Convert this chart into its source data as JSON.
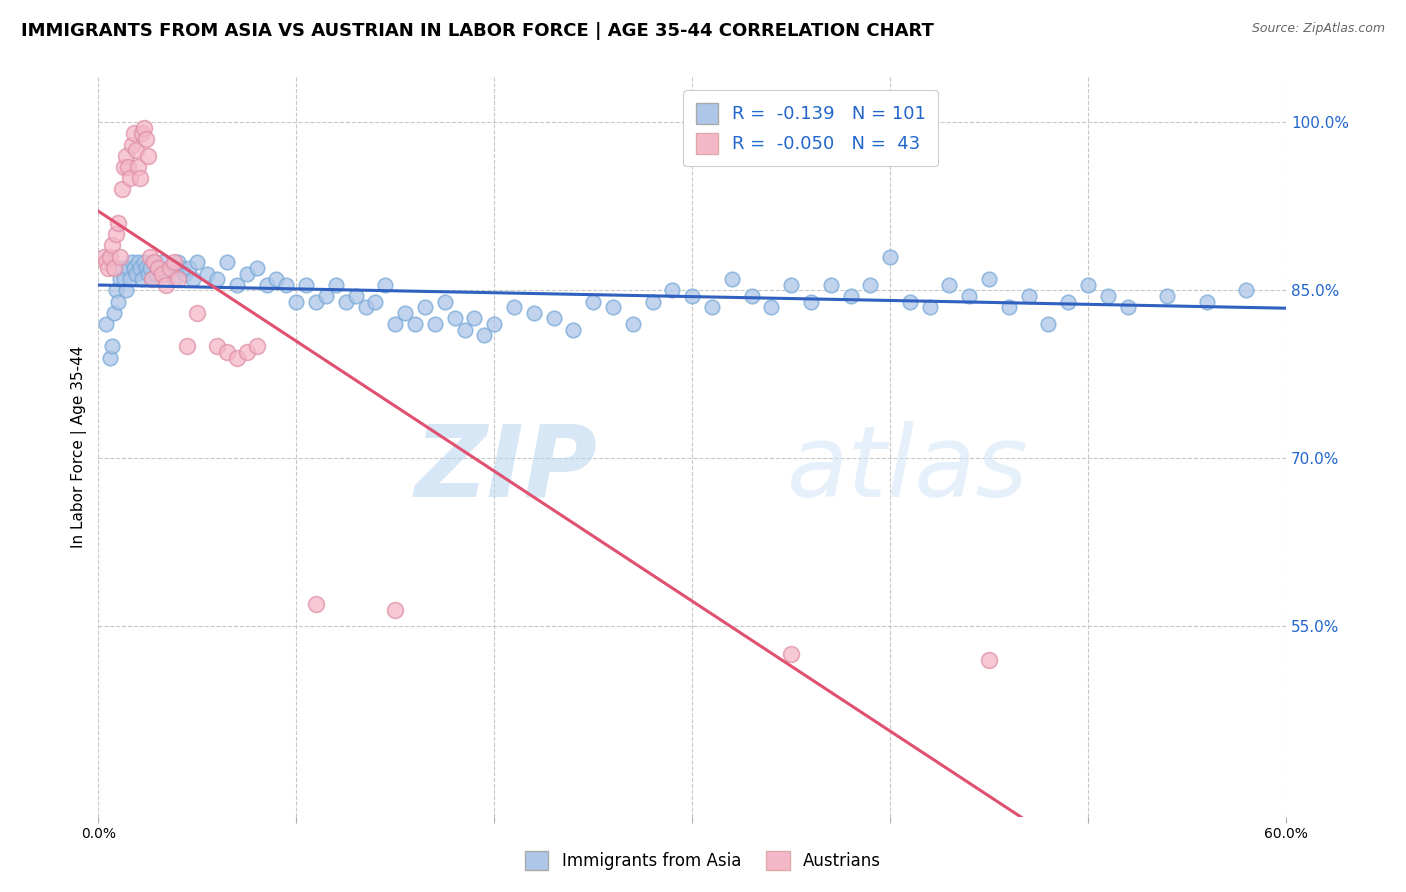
{
  "title": "IMMIGRANTS FROM ASIA VS AUSTRIAN IN LABOR FORCE | AGE 35-44 CORRELATION CHART",
  "source": "Source: ZipAtlas.com",
  "ylabel": "In Labor Force | Age 35-44",
  "xmin": 0.0,
  "xmax": 0.6,
  "ymin": 0.38,
  "ymax": 1.04,
  "right_yticks": [
    1.0,
    0.85,
    0.7,
    0.55
  ],
  "right_yticklabels": [
    "100.0%",
    "85.0%",
    "70.0%",
    "55.0%"
  ],
  "xticks": [
    0.0,
    0.1,
    0.2,
    0.3,
    0.4,
    0.5,
    0.6
  ],
  "xticklabels": [
    "0.0%",
    "",
    "",
    "",
    "",
    "",
    "60.0%"
  ],
  "blue_R": -0.139,
  "blue_N": 101,
  "pink_R": -0.05,
  "pink_N": 43,
  "blue_color": "#aec6e8",
  "pink_color": "#f4b8c8",
  "blue_line_color": "#3060c0",
  "pink_line_color": "#e05070",
  "blue_scatter": [
    [
      0.004,
      0.82
    ],
    [
      0.006,
      0.79
    ],
    [
      0.007,
      0.8
    ],
    [
      0.008,
      0.83
    ],
    [
      0.009,
      0.85
    ],
    [
      0.01,
      0.84
    ],
    [
      0.011,
      0.86
    ],
    [
      0.012,
      0.87
    ],
    [
      0.013,
      0.86
    ],
    [
      0.014,
      0.85
    ],
    [
      0.015,
      0.87
    ],
    [
      0.016,
      0.86
    ],
    [
      0.017,
      0.875
    ],
    [
      0.018,
      0.87
    ],
    [
      0.019,
      0.865
    ],
    [
      0.02,
      0.875
    ],
    [
      0.021,
      0.87
    ],
    [
      0.022,
      0.86
    ],
    [
      0.023,
      0.875
    ],
    [
      0.024,
      0.87
    ],
    [
      0.025,
      0.865
    ],
    [
      0.026,
      0.87
    ],
    [
      0.027,
      0.86
    ],
    [
      0.028,
      0.875
    ],
    [
      0.029,
      0.865
    ],
    [
      0.03,
      0.87
    ],
    [
      0.032,
      0.875
    ],
    [
      0.034,
      0.865
    ],
    [
      0.036,
      0.87
    ],
    [
      0.038,
      0.86
    ],
    [
      0.04,
      0.875
    ],
    [
      0.042,
      0.87
    ],
    [
      0.044,
      0.865
    ],
    [
      0.046,
      0.87
    ],
    [
      0.048,
      0.86
    ],
    [
      0.05,
      0.875
    ],
    [
      0.055,
      0.865
    ],
    [
      0.06,
      0.86
    ],
    [
      0.065,
      0.875
    ],
    [
      0.07,
      0.855
    ],
    [
      0.075,
      0.865
    ],
    [
      0.08,
      0.87
    ],
    [
      0.085,
      0.855
    ],
    [
      0.09,
      0.86
    ],
    [
      0.095,
      0.855
    ],
    [
      0.1,
      0.84
    ],
    [
      0.105,
      0.855
    ],
    [
      0.11,
      0.84
    ],
    [
      0.115,
      0.845
    ],
    [
      0.12,
      0.855
    ],
    [
      0.125,
      0.84
    ],
    [
      0.13,
      0.845
    ],
    [
      0.135,
      0.835
    ],
    [
      0.14,
      0.84
    ],
    [
      0.145,
      0.855
    ],
    [
      0.15,
      0.82
    ],
    [
      0.155,
      0.83
    ],
    [
      0.16,
      0.82
    ],
    [
      0.165,
      0.835
    ],
    [
      0.17,
      0.82
    ],
    [
      0.175,
      0.84
    ],
    [
      0.18,
      0.825
    ],
    [
      0.185,
      0.815
    ],
    [
      0.19,
      0.825
    ],
    [
      0.195,
      0.81
    ],
    [
      0.2,
      0.82
    ],
    [
      0.21,
      0.835
    ],
    [
      0.22,
      0.83
    ],
    [
      0.23,
      0.825
    ],
    [
      0.24,
      0.815
    ],
    [
      0.25,
      0.84
    ],
    [
      0.26,
      0.835
    ],
    [
      0.27,
      0.82
    ],
    [
      0.28,
      0.84
    ],
    [
      0.29,
      0.85
    ],
    [
      0.3,
      0.845
    ],
    [
      0.31,
      0.835
    ],
    [
      0.32,
      0.86
    ],
    [
      0.33,
      0.845
    ],
    [
      0.34,
      0.835
    ],
    [
      0.35,
      0.855
    ],
    [
      0.36,
      0.84
    ],
    [
      0.37,
      0.855
    ],
    [
      0.38,
      0.845
    ],
    [
      0.39,
      0.855
    ],
    [
      0.4,
      0.88
    ],
    [
      0.41,
      0.84
    ],
    [
      0.42,
      0.835
    ],
    [
      0.43,
      0.855
    ],
    [
      0.44,
      0.845
    ],
    [
      0.45,
      0.86
    ],
    [
      0.46,
      0.835
    ],
    [
      0.47,
      0.845
    ],
    [
      0.48,
      0.82
    ],
    [
      0.49,
      0.84
    ],
    [
      0.5,
      0.855
    ],
    [
      0.51,
      0.845
    ],
    [
      0.52,
      0.835
    ],
    [
      0.54,
      0.845
    ],
    [
      0.56,
      0.84
    ],
    [
      0.58,
      0.85
    ]
  ],
  "pink_scatter": [
    [
      0.003,
      0.88
    ],
    [
      0.004,
      0.875
    ],
    [
      0.005,
      0.87
    ],
    [
      0.006,
      0.88
    ],
    [
      0.007,
      0.89
    ],
    [
      0.008,
      0.87
    ],
    [
      0.009,
      0.9
    ],
    [
      0.01,
      0.91
    ],
    [
      0.011,
      0.88
    ],
    [
      0.012,
      0.94
    ],
    [
      0.013,
      0.96
    ],
    [
      0.014,
      0.97
    ],
    [
      0.015,
      0.96
    ],
    [
      0.016,
      0.95
    ],
    [
      0.017,
      0.98
    ],
    [
      0.018,
      0.99
    ],
    [
      0.019,
      0.975
    ],
    [
      0.02,
      0.96
    ],
    [
      0.021,
      0.95
    ],
    [
      0.022,
      0.99
    ],
    [
      0.023,
      0.995
    ],
    [
      0.024,
      0.985
    ],
    [
      0.025,
      0.97
    ],
    [
      0.026,
      0.88
    ],
    [
      0.027,
      0.86
    ],
    [
      0.028,
      0.875
    ],
    [
      0.03,
      0.87
    ],
    [
      0.032,
      0.865
    ],
    [
      0.034,
      0.855
    ],
    [
      0.036,
      0.87
    ],
    [
      0.038,
      0.875
    ],
    [
      0.04,
      0.86
    ],
    [
      0.045,
      0.8
    ],
    [
      0.05,
      0.83
    ],
    [
      0.06,
      0.8
    ],
    [
      0.065,
      0.795
    ],
    [
      0.07,
      0.79
    ],
    [
      0.075,
      0.795
    ],
    [
      0.08,
      0.8
    ],
    [
      0.11,
      0.57
    ],
    [
      0.15,
      0.565
    ],
    [
      0.35,
      0.525
    ],
    [
      0.45,
      0.52
    ]
  ],
  "watermark_zip": "ZIP",
  "watermark_atlas": "atlas",
  "background_color": "#ffffff",
  "grid_color": "#c8c8c8",
  "title_fontsize": 13,
  "label_fontsize": 11,
  "tick_fontsize": 10,
  "legend_fontsize": 12
}
